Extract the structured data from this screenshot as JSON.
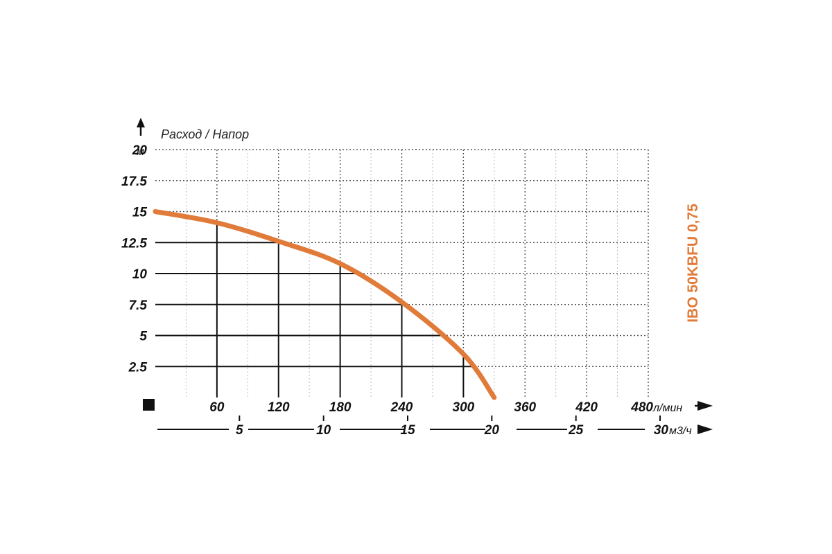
{
  "chart_data": {
    "type": "line",
    "title": "IBO 50KBFU 0,75",
    "ylabel": "Расход / Напор",
    "y_unit": "м",
    "x_unit": "л/мин",
    "x2_unit": "м3/ч",
    "yticks": [
      "2.5",
      "5",
      "7.5",
      "10",
      "12.5",
      "15",
      "17.5",
      "20"
    ],
    "xticks": [
      "60",
      "120",
      "180",
      "240",
      "300",
      "360",
      "420",
      "480"
    ],
    "x2ticks": [
      "5",
      "10",
      "15",
      "20",
      "25",
      "30"
    ],
    "ylim": [
      0,
      20
    ],
    "xlim": [
      0,
      480
    ],
    "x2lim": [
      0,
      30
    ],
    "grid": true,
    "series": [
      {
        "x": [
          0,
          60,
          120,
          180,
          240,
          300,
          330
        ],
        "y": [
          15,
          14.1,
          12.6,
          10.8,
          7.7,
          3.5,
          0
        ],
        "color": "#E07B39"
      }
    ],
    "highlight_points": [
      {
        "x": 60,
        "y": 14.1
      },
      {
        "x": 120,
        "y": 12.6
      },
      {
        "x": 180,
        "y": 10.8
      },
      {
        "x": 240,
        "y": 7.7
      },
      {
        "x": 300,
        "y": 3.5
      }
    ]
  }
}
